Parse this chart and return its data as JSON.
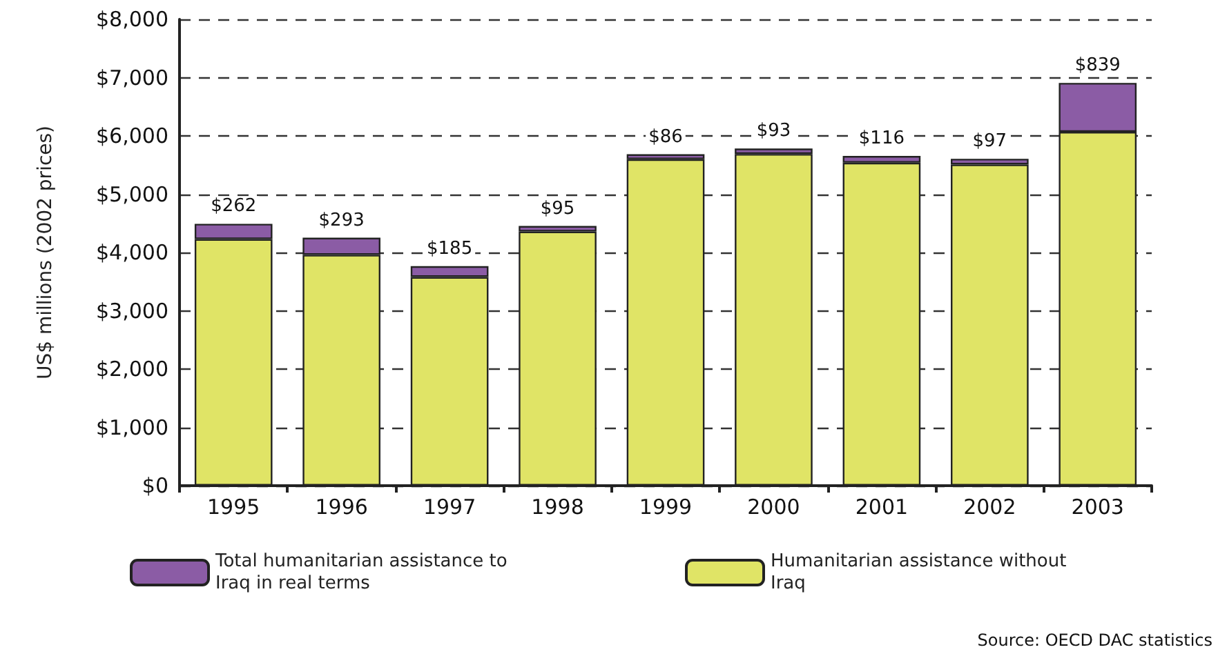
{
  "chart_data": {
    "type": "bar",
    "stacked": true,
    "ylabel": "US$ millions (2002 prices)",
    "categories": [
      "1995",
      "1996",
      "1997",
      "1998",
      "1999",
      "2000",
      "2001",
      "2002",
      "2003"
    ],
    "series": [
      {
        "name": "Humanitarian assistance without Iraq",
        "color": "#e0e466",
        "values": [
          4230,
          3960,
          3580,
          4360,
          5600,
          5690,
          5540,
          5510,
          6070
        ]
      },
      {
        "name": "Total humanitarian assistance to Iraq in real terms",
        "color": "#8b5ca5",
        "values": [
          262,
          293,
          185,
          95,
          86,
          93,
          116,
          97,
          839
        ],
        "value_labels": [
          "$262",
          "$293",
          "$185",
          "$95",
          "$86",
          "$93",
          "$116",
          "$97",
          "$839"
        ]
      }
    ],
    "ylim": [
      0,
      8000
    ],
    "yticks": [
      {
        "value": 0,
        "label": "$0"
      },
      {
        "value": 1000,
        "label": "$1,000"
      },
      {
        "value": 2000,
        "label": "$2,000"
      },
      {
        "value": 3000,
        "label": "$3,000"
      },
      {
        "value": 4000,
        "label": "$4,000"
      },
      {
        "value": 5000,
        "label": "$5,000"
      },
      {
        "value": 6000,
        "label": "$6,000"
      },
      {
        "value": 7000,
        "label": "$7,000"
      },
      {
        "value": 8000,
        "label": "$8,000"
      }
    ],
    "grid": "y",
    "legend": "bottom",
    "annotations": [
      "Source: OECD DAC statistics"
    ]
  }
}
